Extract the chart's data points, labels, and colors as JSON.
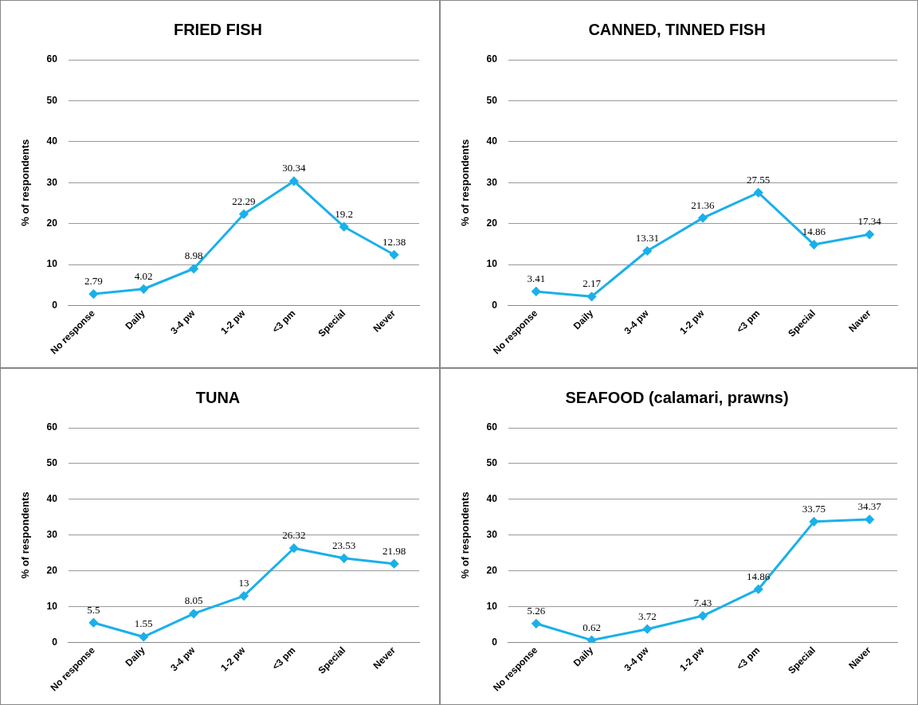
{
  "chart_data": [
    {
      "type": "line",
      "title": "FRIED FISH",
      "ylabel": "% of respondents",
      "categories": [
        "No response",
        "Daily",
        "3-4 pw",
        "1-2 pw",
        "<3 pm",
        "Special",
        "Never"
      ],
      "series": [
        {
          "color": "#1ab0ea",
          "values": [
            2.79,
            4.02,
            8.98,
            22.29,
            30.34,
            19.2,
            12.38
          ]
        }
      ],
      "ylim": [
        0,
        60
      ],
      "yticks": [
        0,
        10,
        20,
        30,
        40,
        50,
        60
      ],
      "grid": "y",
      "marker": "diamond",
      "line_style": "solid",
      "data_labels": true,
      "legend": false
    },
    {
      "type": "line",
      "title": "CANNED, TINNED FISH",
      "ylabel": "% of respondents",
      "categories": [
        "No response",
        "Daily",
        "3-4 pw",
        "1-2 pw",
        "<3 pm",
        "Special",
        "Naver"
      ],
      "series": [
        {
          "color": "#1ab0ea",
          "values": [
            3.41,
            2.17,
            13.31,
            21.36,
            27.55,
            14.86,
            17.34
          ]
        }
      ],
      "ylim": [
        0,
        60
      ],
      "yticks": [
        0,
        10,
        20,
        30,
        40,
        50,
        60
      ],
      "grid": "y",
      "marker": "diamond",
      "line_style": "solid",
      "data_labels": true,
      "legend": false
    },
    {
      "type": "line",
      "title": "TUNA",
      "ylabel": "% of respondents",
      "categories": [
        "No response",
        "Daily",
        "3-4 pw",
        "1-2 pw",
        "<3 pm",
        "Special",
        "Never"
      ],
      "series": [
        {
          "color": "#1ab0ea",
          "values": [
            5.5,
            1.55,
            8.05,
            13,
            26.32,
            23.53,
            21.98
          ]
        }
      ],
      "ylim": [
        0,
        60
      ],
      "yticks": [
        0,
        10,
        20,
        30,
        40,
        50,
        60
      ],
      "grid": "y",
      "marker": "diamond",
      "line_style": "solid",
      "data_labels": true,
      "legend": false
    },
    {
      "type": "line",
      "title": "SEAFOOD (calamari, prawns)",
      "ylabel": "% of respondents",
      "categories": [
        "No response",
        "Daily",
        "3-4 pw",
        "1-2 pw",
        "<3 pm",
        "Special",
        "Naver"
      ],
      "series": [
        {
          "color": "#1ab0ea",
          "values": [
            5.26,
            0.62,
            3.72,
            7.43,
            14.86,
            33.75,
            34.37
          ]
        }
      ],
      "ylim": [
        0,
        60
      ],
      "yticks": [
        0,
        10,
        20,
        30,
        40,
        50,
        60
      ],
      "grid": "y",
      "marker": "diamond",
      "line_style": "solid",
      "data_labels": true,
      "legend": false
    }
  ]
}
